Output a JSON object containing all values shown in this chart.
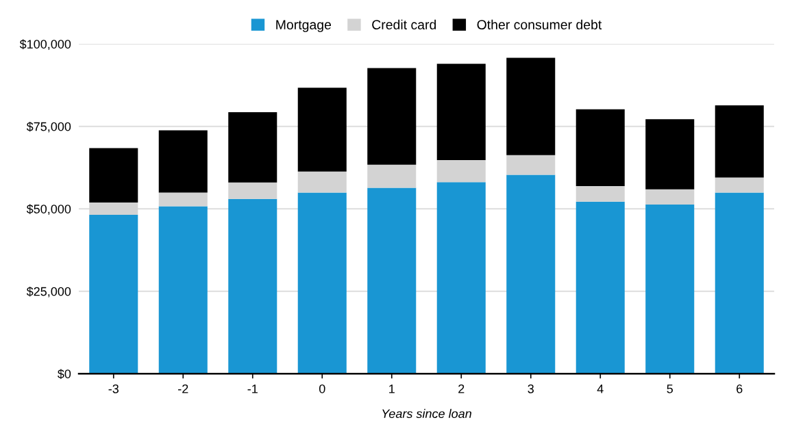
{
  "chart_data": {
    "type": "bar",
    "stacked": true,
    "xlabel": "Years since loan",
    "categories": [
      "-3",
      "-2",
      "-1",
      "0",
      "1",
      "2",
      "3",
      "4",
      "5",
      "6"
    ],
    "series": [
      {
        "name": "Mortgage",
        "color": "#1996d3",
        "values": [
          48200,
          50800,
          53000,
          54900,
          56400,
          58100,
          60300,
          52200,
          51300,
          54900
        ]
      },
      {
        "name": "Credit card",
        "color": "#d3d3d3",
        "values": [
          3700,
          4100,
          5000,
          6400,
          7000,
          6700,
          6000,
          4700,
          4600,
          4600
        ]
      },
      {
        "name": "Other consumer debt",
        "color": "#000000",
        "values": [
          16500,
          18900,
          21300,
          25400,
          29300,
          29200,
          29500,
          23300,
          21300,
          21900
        ]
      }
    ],
    "ylim": [
      0,
      100000
    ],
    "yticks": [
      {
        "value": 0,
        "label": "$0"
      },
      {
        "value": 25000,
        "label": "$25,000"
      },
      {
        "value": 50000,
        "label": "$50,000"
      },
      {
        "value": 75000,
        "label": "$75,000"
      },
      {
        "value": 100000,
        "label": "$100,000"
      }
    ],
    "grid": "y",
    "legend": "top"
  }
}
